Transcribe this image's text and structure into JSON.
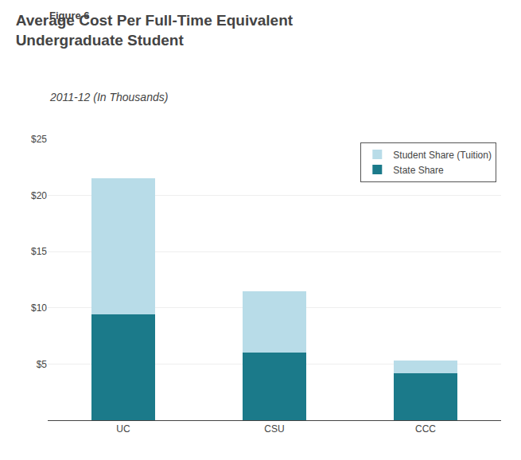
{
  "chart_data": {
    "type": "bar",
    "stacked": true,
    "annotations": [
      "Figure 6"
    ],
    "title": "Average Cost Per Full-Time Equivalent\nUndergraduate Student",
    "subtitle": "2011-12 (In Thousands)",
    "categories": [
      "UC",
      "CSU",
      "CCC"
    ],
    "series": [
      {
        "name": "State Share",
        "color": "#1B7A8A",
        "values": [
          9.4,
          6.0,
          4.2
        ]
      },
      {
        "name": "Student Share (Tuition)",
        "color": "#B8DCE8",
        "values": [
          12.1,
          5.5,
          1.1
        ]
      }
    ],
    "ylim": [
      0,
      25
    ],
    "yticks": [
      {
        "value": 5,
        "label": "$5"
      },
      {
        "value": 10,
        "label": "$10"
      },
      {
        "value": 15,
        "label": "$15"
      },
      {
        "value": 20,
        "label": "$20"
      },
      {
        "value": 25,
        "label": "$25"
      }
    ],
    "grid": true,
    "legend": "upper right"
  }
}
